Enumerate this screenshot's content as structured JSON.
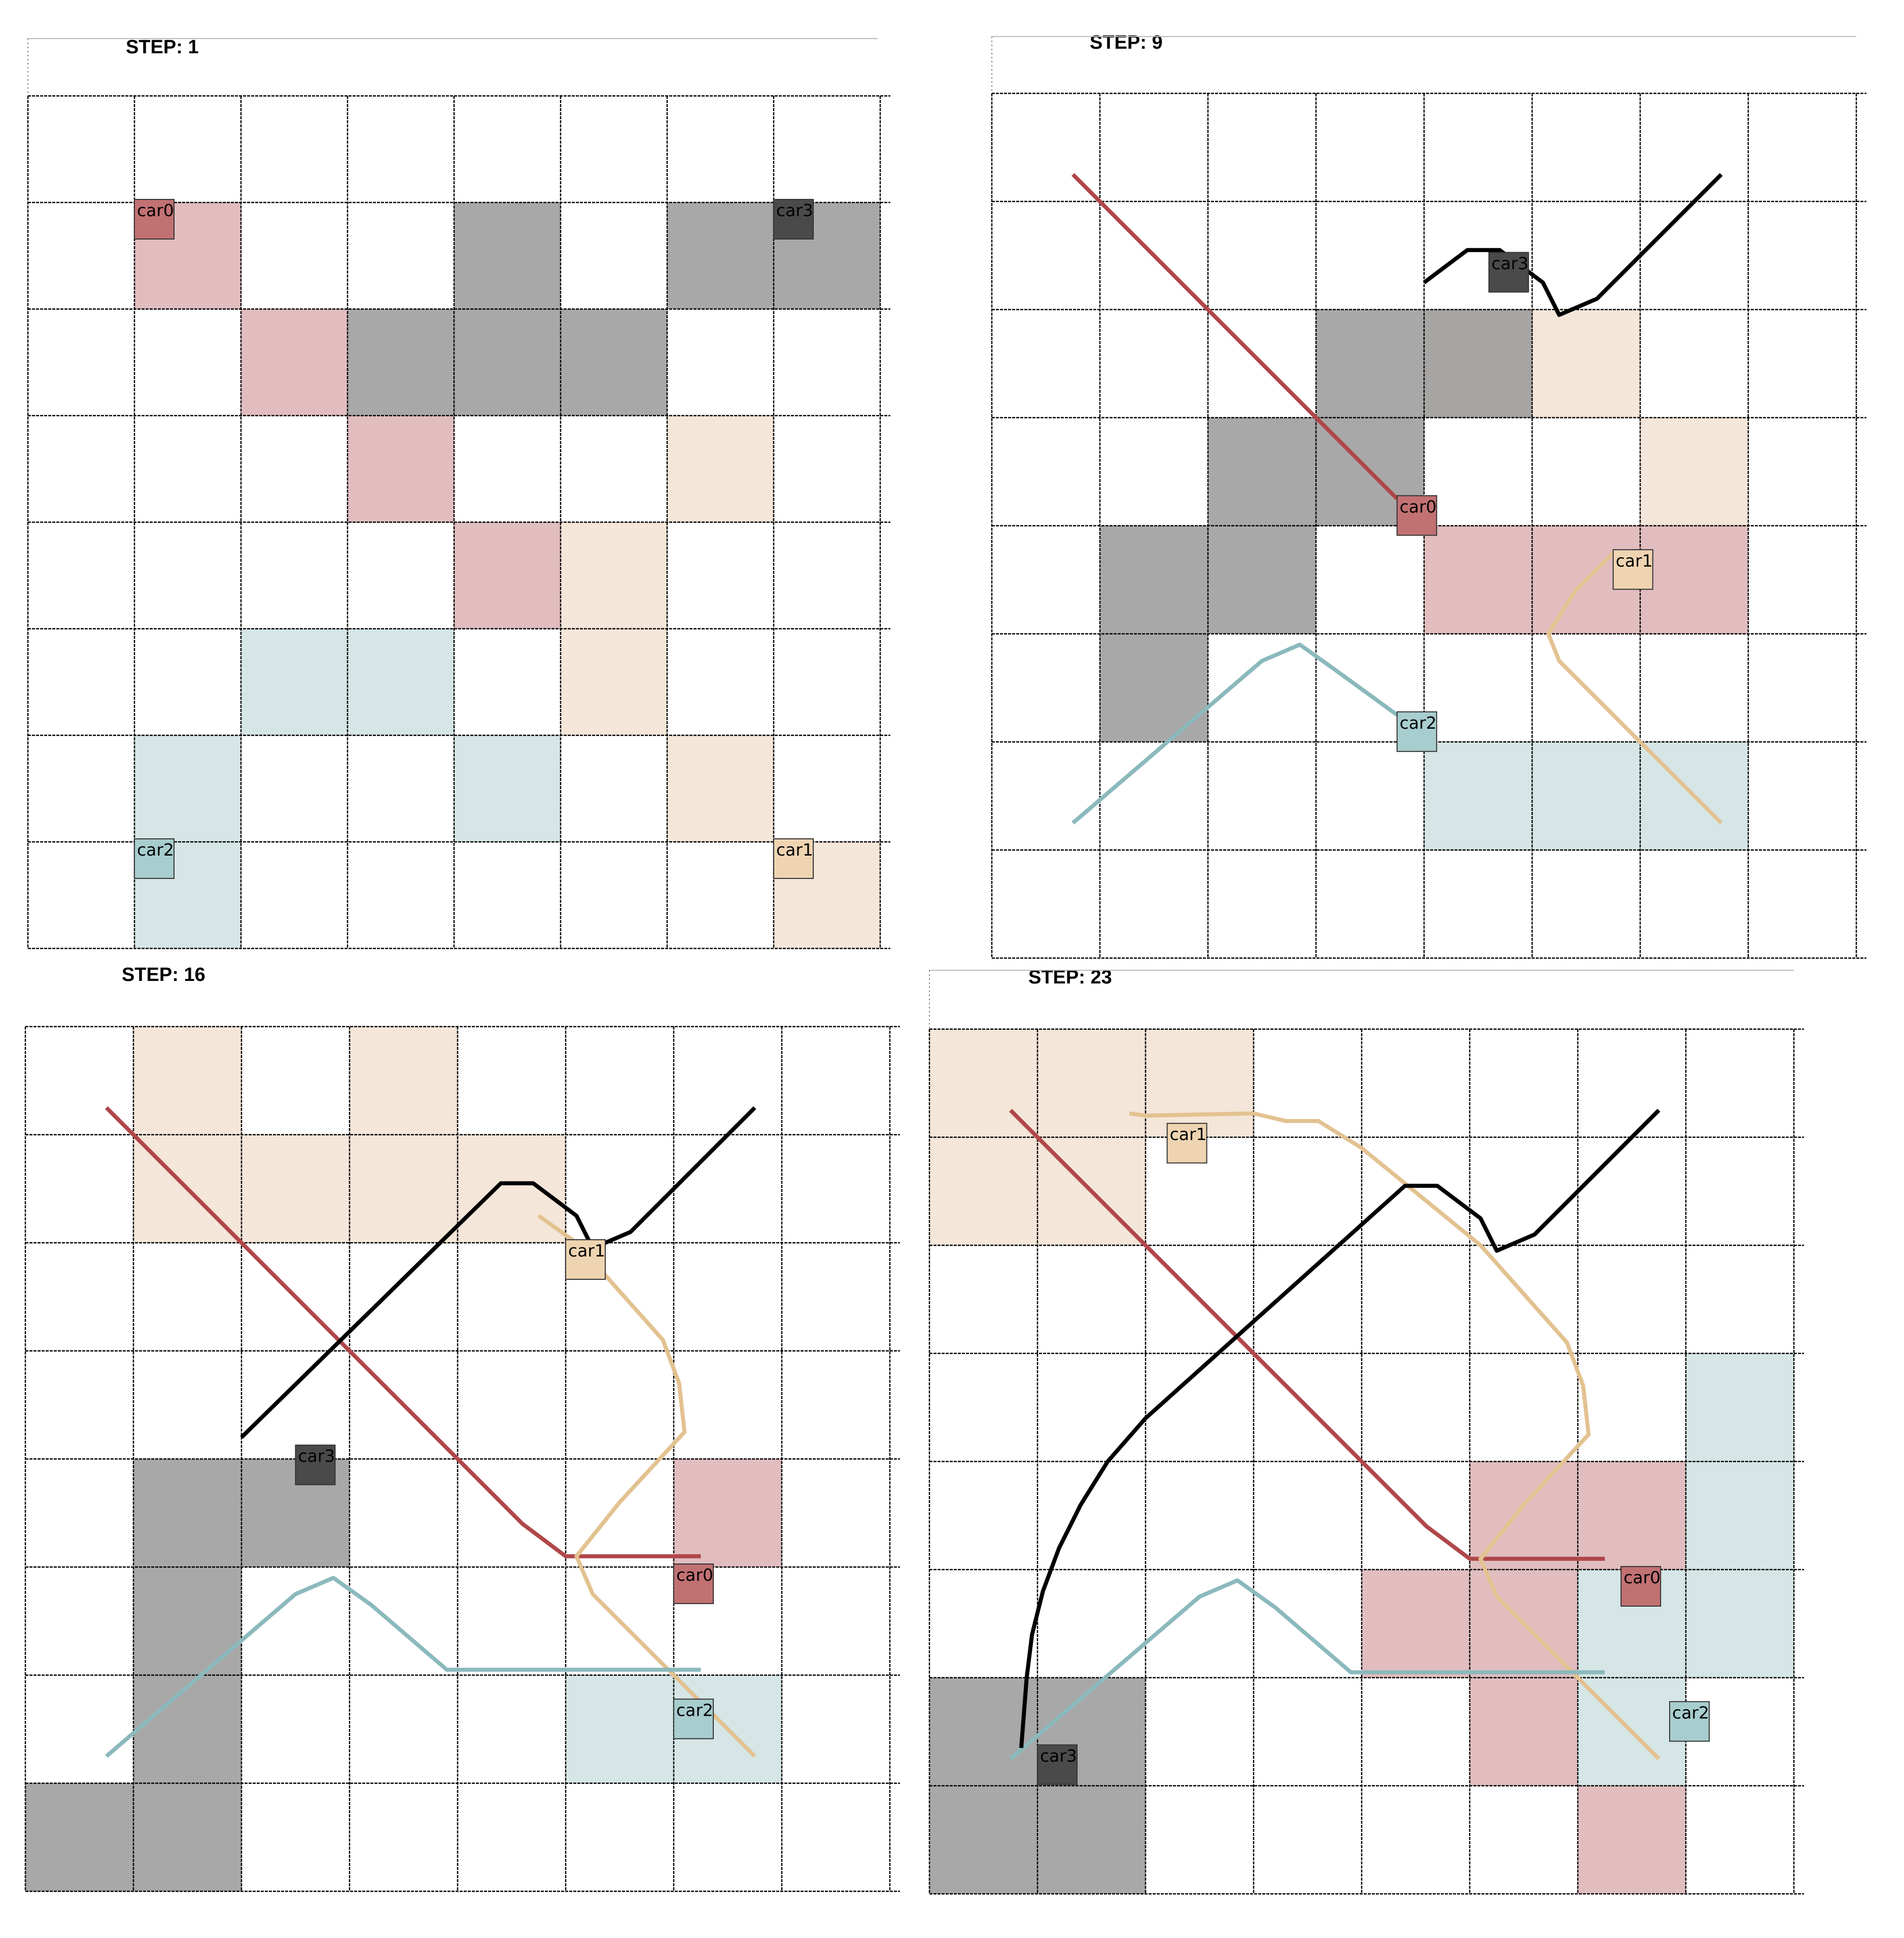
{
  "grid": {
    "cols": 8,
    "rows": 8
  },
  "colors": {
    "car0": {
      "fill": "#ddb4b6",
      "path": "#b0474a",
      "marker": "#c27173"
    },
    "car1": {
      "fill": "#f2e3d3",
      "path": "#e3c291",
      "marker": "#efd4b2"
    },
    "car2": {
      "fill": "#d0e2e3",
      "path": "#8bb9bc",
      "marker": "#a8cdce"
    },
    "car3": {
      "fill": "#9c9c9c",
      "path": "#000000",
      "marker": "#4a4a4a"
    },
    "grid_line": "#000000"
  },
  "panels": [
    {
      "title": "STEP: 1",
      "cells": {
        "car0": [
          [
            1,
            1
          ],
          [
            2,
            2
          ],
          [
            3,
            3
          ],
          [
            4,
            4
          ]
        ],
        "car1": [
          [
            6,
            3
          ],
          [
            5,
            4
          ],
          [
            5,
            5
          ],
          [
            6,
            6
          ],
          [
            7,
            7
          ]
        ],
        "car2": [
          [
            2,
            5
          ],
          [
            3,
            5
          ],
          [
            1,
            6
          ],
          [
            4,
            6
          ],
          [
            1,
            7
          ]
        ],
        "car3": [
          [
            4,
            1
          ],
          [
            6,
            1
          ],
          [
            7,
            1
          ],
          [
            3,
            2
          ],
          [
            4,
            2
          ],
          [
            5,
            2
          ]
        ]
      },
      "paths": {
        "car0": [],
        "car1": [],
        "car2": [],
        "car3": []
      },
      "cars": [
        {
          "id": "car0",
          "label": "car0",
          "x": 1,
          "y": 1
        },
        {
          "id": "car3",
          "label": "car3",
          "x": 7,
          "y": 1
        },
        {
          "id": "car2",
          "label": "car2",
          "x": 1,
          "y": 7
        },
        {
          "id": "car1",
          "label": "car1",
          "x": 7,
          "y": 7
        }
      ]
    },
    {
      "title": "STEP: 9",
      "cells": {
        "car0": [
          [
            4,
            4
          ],
          [
            5,
            4
          ],
          [
            6,
            4
          ]
        ],
        "car1": [
          [
            4,
            2
          ],
          [
            5,
            2
          ],
          [
            6,
            3
          ]
        ],
        "car2": [
          [
            4,
            6
          ],
          [
            5,
            6
          ],
          [
            6,
            6
          ]
        ],
        "car3": [
          [
            3,
            2
          ],
          [
            4,
            2
          ],
          [
            2,
            3
          ],
          [
            3,
            3
          ],
          [
            1,
            4
          ],
          [
            2,
            4
          ],
          [
            1,
            5
          ]
        ]
      },
      "paths": {
        "car0": [
          [
            0.75,
            0.75
          ],
          [
            3.75,
            3.75
          ]
        ],
        "car1": [
          [
            6.75,
            6.75
          ],
          [
            5.25,
            5.25
          ],
          [
            5.15,
            5.0
          ],
          [
            5.4,
            4.6
          ],
          [
            5.75,
            4.25
          ]
        ],
        "car2": [
          [
            0.75,
            6.75
          ],
          [
            2.5,
            5.25
          ],
          [
            2.85,
            5.1
          ],
          [
            3.2,
            5.35
          ],
          [
            3.75,
            5.75
          ]
        ],
        "car3": [
          [
            6.75,
            0.75
          ],
          [
            5.6,
            1.9
          ],
          [
            5.25,
            2.05
          ],
          [
            5.1,
            1.75
          ],
          [
            4.9,
            1.6
          ],
          [
            4.7,
            1.45
          ],
          [
            4.4,
            1.45
          ],
          [
            4.0,
            1.75
          ]
        ]
      },
      "cars": [
        {
          "id": "car3",
          "label": "car3",
          "x": 4.6,
          "y": 1.5
        },
        {
          "id": "car0",
          "label": "car0",
          "x": 3.75,
          "y": 3.75
        },
        {
          "id": "car1",
          "label": "car1",
          "x": 5.75,
          "y": 4.25
        },
        {
          "id": "car2",
          "label": "car2",
          "x": 3.75,
          "y": 5.75
        }
      ]
    },
    {
      "title": "STEP: 16",
      "cells": {
        "car0": [
          [
            6,
            4
          ]
        ],
        "car1": [
          [
            1,
            0
          ],
          [
            3,
            0
          ],
          [
            1,
            1
          ],
          [
            2,
            1
          ],
          [
            3,
            1
          ],
          [
            4,
            1
          ]
        ],
        "car2": [
          [
            5,
            6
          ],
          [
            6,
            6
          ]
        ],
        "car3": [
          [
            1,
            4
          ],
          [
            2,
            4
          ],
          [
            1,
            5
          ],
          [
            1,
            6
          ],
          [
            0,
            7
          ],
          [
            1,
            7
          ]
        ]
      },
      "paths": {
        "car0": [
          [
            0.75,
            0.75
          ],
          [
            4.6,
            4.6
          ],
          [
            5.0,
            4.9
          ],
          [
            6.25,
            4.9
          ]
        ],
        "car1": [
          [
            6.75,
            6.75
          ],
          [
            5.25,
            5.25
          ],
          [
            5.1,
            4.9
          ],
          [
            5.5,
            4.4
          ],
          [
            6.1,
            3.75
          ],
          [
            6.05,
            3.3
          ],
          [
            5.9,
            2.9
          ],
          [
            5.1,
            2.0
          ],
          [
            4.75,
            1.75
          ]
        ],
        "car2": [
          [
            0.75,
            6.75
          ],
          [
            2.5,
            5.25
          ],
          [
            2.85,
            5.1
          ],
          [
            3.2,
            5.35
          ],
          [
            3.9,
            5.95
          ],
          [
            6.25,
            5.95
          ]
        ],
        "car3": [
          [
            6.75,
            0.75
          ],
          [
            5.6,
            1.9
          ],
          [
            5.25,
            2.05
          ],
          [
            5.1,
            1.75
          ],
          [
            4.9,
            1.6
          ],
          [
            4.7,
            1.45
          ],
          [
            4.4,
            1.45
          ],
          [
            2.0,
            3.8
          ]
        ]
      },
      "cars": [
        {
          "id": "car1",
          "label": "car1",
          "x": 5.0,
          "y": 2.0
        },
        {
          "id": "car3",
          "label": "car3",
          "x": 2.5,
          "y": 3.9
        },
        {
          "id": "car0",
          "label": "car0",
          "x": 6.0,
          "y": 5.0
        },
        {
          "id": "car2",
          "label": "car2",
          "x": 6.0,
          "y": 6.25
        }
      ]
    },
    {
      "title": "STEP: 23",
      "cells": {
        "car0": [
          [
            5,
            4
          ],
          [
            6,
            4
          ],
          [
            4,
            5
          ],
          [
            5,
            5
          ],
          [
            5,
            6
          ],
          [
            6,
            7
          ]
        ],
        "car1": [
          [
            0,
            0
          ],
          [
            1,
            0
          ],
          [
            2,
            0
          ],
          [
            0,
            1
          ],
          [
            1,
            1
          ]
        ],
        "car2": [
          [
            7,
            3
          ],
          [
            7,
            4
          ],
          [
            6,
            5
          ],
          [
            7,
            5
          ],
          [
            6,
            6
          ]
        ],
        "car3": [
          [
            0,
            6
          ],
          [
            1,
            6
          ],
          [
            0,
            7
          ],
          [
            1,
            7
          ]
        ]
      },
      "paths": {
        "car0": [
          [
            0.75,
            0.75
          ],
          [
            4.6,
            4.6
          ],
          [
            5.0,
            4.9
          ],
          [
            6.25,
            4.9
          ]
        ],
        "car1": [
          [
            6.75,
            6.75
          ],
          [
            5.25,
            5.25
          ],
          [
            5.1,
            4.9
          ],
          [
            5.5,
            4.4
          ],
          [
            6.1,
            3.75
          ],
          [
            6.05,
            3.3
          ],
          [
            5.9,
            2.9
          ],
          [
            5.1,
            2.0
          ],
          [
            4.0,
            1.1
          ],
          [
            3.6,
            0.85
          ],
          [
            3.3,
            0.85
          ],
          [
            3.0,
            0.78
          ],
          [
            2.0,
            0.8
          ],
          [
            1.85,
            0.78
          ]
        ],
        "car2": [
          [
            0.75,
            6.75
          ],
          [
            2.5,
            5.25
          ],
          [
            2.85,
            5.1
          ],
          [
            3.2,
            5.35
          ],
          [
            3.9,
            5.95
          ],
          [
            6.25,
            5.95
          ]
        ],
        "car3": [
          [
            6.75,
            0.75
          ],
          [
            5.6,
            1.9
          ],
          [
            5.25,
            2.05
          ],
          [
            5.1,
            1.75
          ],
          [
            4.9,
            1.6
          ],
          [
            4.7,
            1.45
          ],
          [
            4.4,
            1.45
          ],
          [
            2.0,
            3.6
          ],
          [
            1.65,
            4.0
          ],
          [
            1.4,
            4.4
          ],
          [
            1.2,
            4.8
          ],
          [
            1.05,
            5.2
          ],
          [
            0.95,
            5.6
          ],
          [
            0.9,
            6.0
          ],
          [
            0.85,
            6.65
          ]
        ]
      },
      "cars": [
        {
          "id": "car1",
          "label": "car1",
          "x": 2.2,
          "y": 0.9
        },
        {
          "id": "car0",
          "label": "car0",
          "x": 6.4,
          "y": 5.0
        },
        {
          "id": "car2",
          "label": "car2",
          "x": 6.85,
          "y": 6.25
        },
        {
          "id": "car3",
          "label": "car3",
          "x": 1.0,
          "y": 6.65
        }
      ]
    }
  ]
}
